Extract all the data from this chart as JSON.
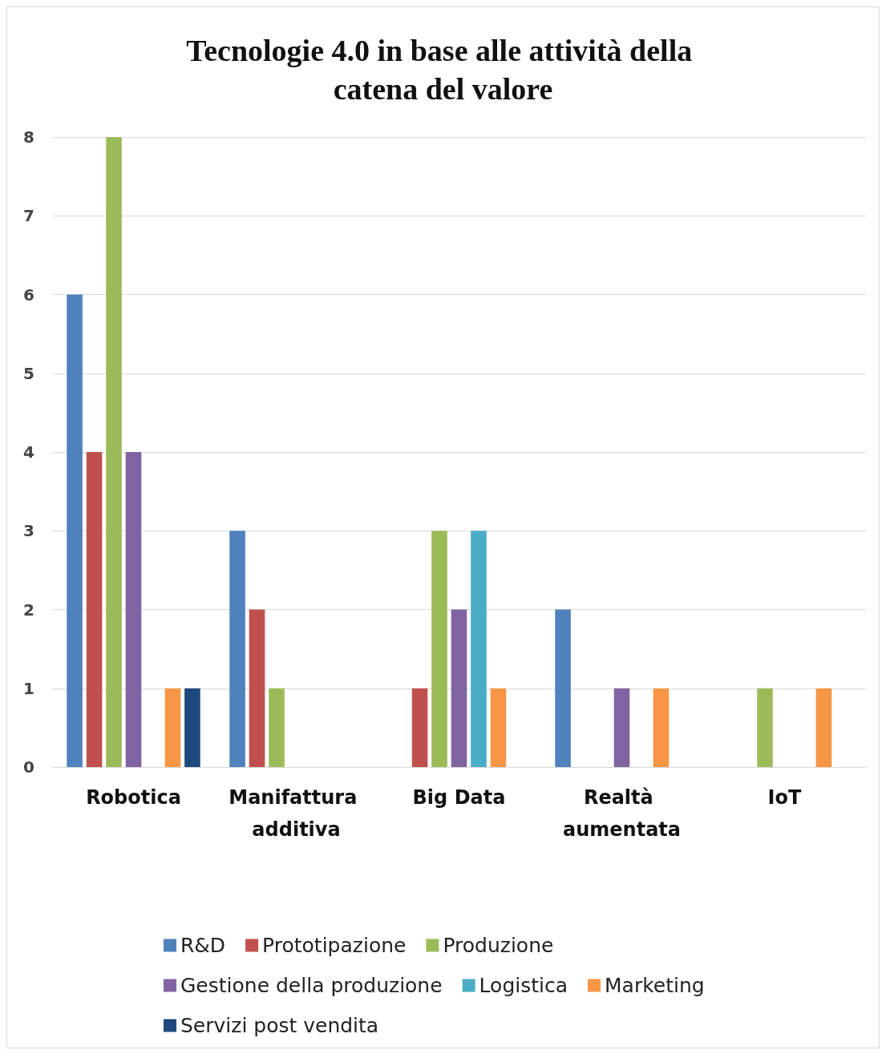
{
  "chart_data": {
    "type": "bar",
    "title": "Tecnologie 4.0 in base alle attività della catena del valore",
    "categories": [
      "Robotica",
      "Manifattura additiva",
      "Big Data",
      "Realtà aumentata",
      "IoT"
    ],
    "series": [
      {
        "name": "R&D",
        "color": "#4f81bd",
        "values": [
          6,
          3,
          0,
          2,
          0
        ]
      },
      {
        "name": "Prototipazione",
        "color": "#c0504d",
        "values": [
          4,
          2,
          1,
          0,
          0
        ]
      },
      {
        "name": "Produzione",
        "color": "#9bbb59",
        "values": [
          8,
          1,
          3,
          0,
          1
        ]
      },
      {
        "name": "Gestione della produzione",
        "color": "#8064a2",
        "values": [
          4,
          0,
          2,
          1,
          0
        ]
      },
      {
        "name": "Logistica",
        "color": "#4bacc6",
        "values": [
          0,
          0,
          3,
          0,
          0
        ]
      },
      {
        "name": "Marketing",
        "color": "#f79646",
        "values": [
          1,
          0,
          1,
          1,
          1
        ]
      },
      {
        "name": "Servizi post vendita",
        "color": "#1f497d",
        "values": [
          1,
          0,
          0,
          0,
          0
        ]
      }
    ],
    "ylim": [
      0,
      8
    ],
    "yticks": [
      0,
      1,
      2,
      3,
      4,
      5,
      6,
      7,
      8
    ],
    "grid": "y",
    "legend": "bottom"
  }
}
